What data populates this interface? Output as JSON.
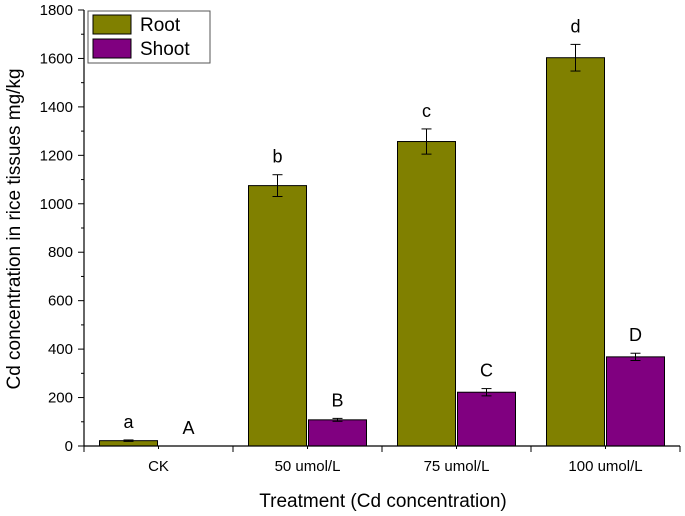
{
  "chart_data": {
    "type": "bar",
    "xlabel": "Treatment (Cd concentration)",
    "ylabel": "Cd concentration in rice tissues mg/kg",
    "ylim": [
      0,
      1800
    ],
    "yticks": [
      0,
      200,
      400,
      600,
      800,
      1000,
      1200,
      1400,
      1600,
      1800
    ],
    "categories": [
      "CK",
      "50 umol/L",
      "75 umol/L",
      "100 umol/L"
    ],
    "legend_position": "top-left",
    "grid": false,
    "series": [
      {
        "name": "Root",
        "color": "#808000",
        "values": [
          22,
          1075,
          1257,
          1603
        ],
        "errors": [
          3,
          45,
          52,
          55
        ],
        "labels": [
          "a",
          "b",
          "c",
          "d"
        ]
      },
      {
        "name": "Shoot",
        "color": "#800080",
        "values": [
          0,
          108,
          222,
          368
        ],
        "errors": [
          0,
          6,
          15,
          15
        ],
        "labels": [
          "A",
          "B",
          "C",
          "D"
        ]
      }
    ]
  }
}
